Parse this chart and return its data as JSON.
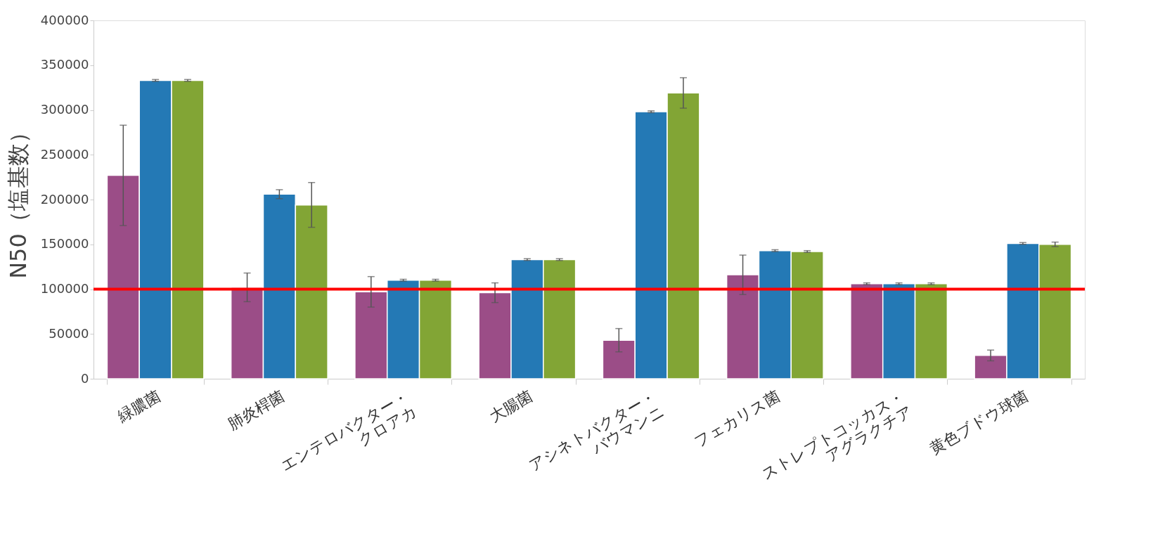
{
  "chart_data": {
    "type": "bar",
    "ylabel": "N50（塩基数）",
    "categories": [
      "緑膿菌",
      "肺炎桿菌",
      "エンテロバクター・\nクロアカ",
      "大腸菌",
      "アシネトバクター・\nバウマンニ",
      "フェカリス菌",
      "ストレプトコッカス・\nアグラクチア",
      "黄色ブドウ球菌"
    ],
    "series": [
      {
        "color": "#9b4d87",
        "values": [
          227000,
          102000,
          97000,
          96000,
          43000,
          116000,
          106000,
          26000
        ],
        "errors": [
          56000,
          16000,
          17000,
          11000,
          13000,
          22000,
          1000,
          6000
        ]
      },
      {
        "color": "#2479b5",
        "values": [
          333000,
          206000,
          110000,
          133000,
          298000,
          143000,
          106000,
          151000
        ],
        "errors": [
          1000,
          5000,
          1000,
          1000,
          1000,
          1000,
          1000,
          1000
        ]
      },
      {
        "color": "#82a535",
        "values": [
          333000,
          194000,
          110000,
          133000,
          319000,
          142000,
          106000,
          150000
        ],
        "errors": [
          1000,
          25000,
          1000,
          1000,
          17000,
          1000,
          1000,
          2500
        ]
      }
    ],
    "ylim": [
      0,
      400000
    ],
    "yticks": [
      0,
      50000,
      100000,
      150000,
      200000,
      250000,
      300000,
      350000,
      400000
    ],
    "ref_lines": [
      {
        "axis": "y",
        "value": 100000,
        "color": "#ff0000"
      }
    ],
    "grid": false,
    "legend": false
  }
}
